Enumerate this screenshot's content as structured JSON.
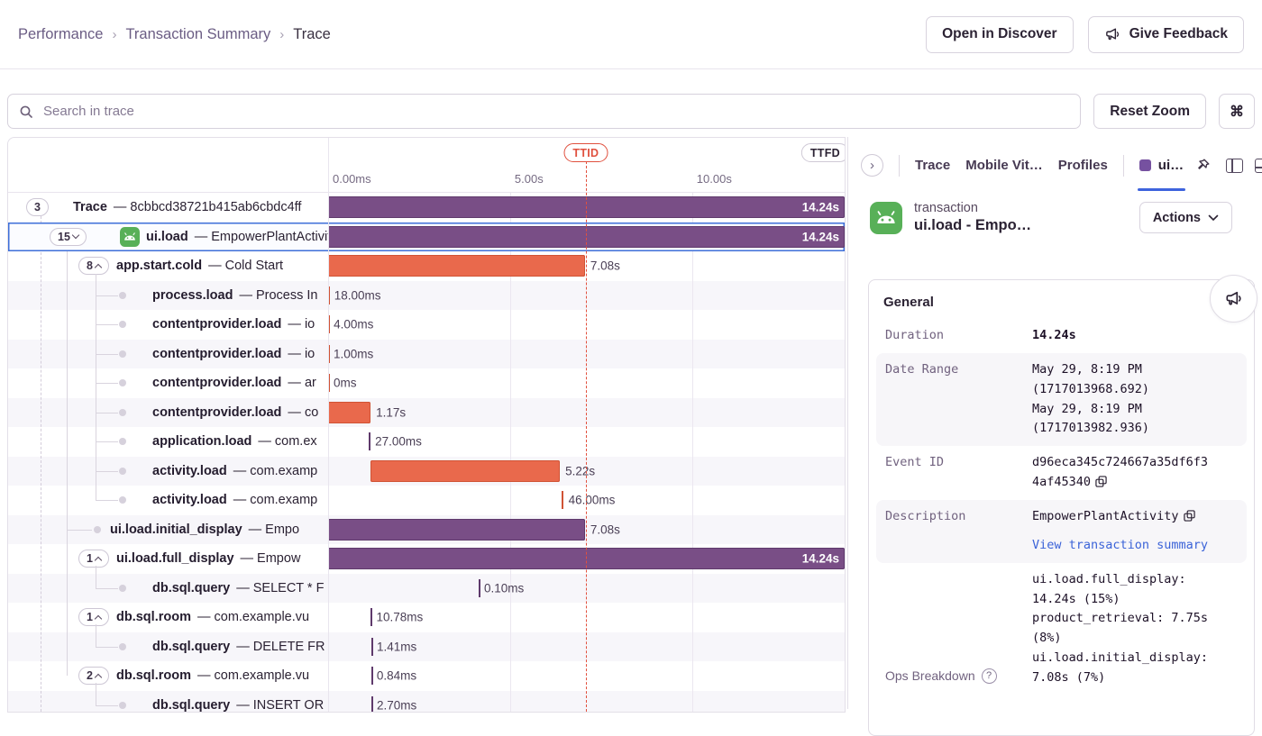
{
  "breadcrumb": {
    "items": [
      "Performance",
      "Transaction Summary",
      "Trace"
    ]
  },
  "header_buttons": {
    "open_in_discover": "Open in Discover",
    "give_feedback": "Give Feedback"
  },
  "toolbar": {
    "search_placeholder": "Search in trace",
    "reset_zoom_label": "Reset Zoom",
    "shortcut_key": "⌘"
  },
  "timeline": {
    "axis_ticks": [
      "0.00ms",
      "5.00s",
      "10.00s"
    ],
    "total_duration_s": 14.24,
    "markers": [
      {
        "label": "TTID",
        "time_s": 7.08,
        "style": "red"
      },
      {
        "label": "TTFD",
        "time_s": 14.24,
        "style": "gray"
      }
    ]
  },
  "trace_tree": {
    "rows": [
      {
        "op": "Trace",
        "desc": "8cbbcd38721b415ab6cbdc4ff",
        "kind": "pill",
        "pill": "3",
        "arrow": null,
        "level": 0,
        "bar": {
          "color": "purple",
          "start_s": 0,
          "dur_s": 14.24,
          "label": "14.24s",
          "inside": true
        }
      },
      {
        "op": "ui.load",
        "desc": "EmpowerPlantActivity",
        "kind": "pill",
        "pill": "15",
        "arrow": "down",
        "level": 1,
        "icon": "android",
        "selected": true,
        "bar": {
          "color": "purple",
          "start_s": 0,
          "dur_s": 14.24,
          "label": "14.24s",
          "inside": true
        }
      },
      {
        "op": "app.start.cold",
        "desc": "Cold Start",
        "kind": "pill",
        "pill": "8",
        "arrow": "up",
        "level": 2,
        "bar": {
          "color": "orange",
          "start_s": 0,
          "dur_s": 7.08,
          "label": "7.08s"
        }
      },
      {
        "op": "process.load",
        "desc": "Process In",
        "kind": "dot",
        "level": 3,
        "bar": {
          "color": "orange",
          "start_s": 0,
          "dur_s": 0.018,
          "label": "18.00ms"
        }
      },
      {
        "op": "contentprovider.load",
        "desc": "io",
        "kind": "dot",
        "level": 3,
        "bar": {
          "color": "orange",
          "start_s": 0,
          "dur_s": 0.004,
          "label": "4.00ms"
        }
      },
      {
        "op": "contentprovider.load",
        "desc": "io",
        "kind": "dot",
        "level": 3,
        "bar": {
          "color": "orange",
          "start_s": 0,
          "dur_s": 0.001,
          "label": "1.00ms"
        }
      },
      {
        "op": "contentprovider.load",
        "desc": "ar",
        "kind": "dot",
        "level": 3,
        "bar": {
          "color": "orange",
          "start_s": 0,
          "dur_s": 0,
          "label": "0ms"
        }
      },
      {
        "op": "contentprovider.load",
        "desc": "co",
        "kind": "dot",
        "level": 3,
        "bar": {
          "color": "orange",
          "start_s": 0,
          "dur_s": 1.17,
          "label": "1.17s"
        }
      },
      {
        "op": "application.load",
        "desc": "com.ex",
        "kind": "dot",
        "level": 3,
        "bar": {
          "color": "purple",
          "start_s": 1.12,
          "dur_s": 0.027,
          "label": "27.00ms"
        }
      },
      {
        "op": "activity.load",
        "desc": "com.examp",
        "kind": "dot",
        "level": 3,
        "bar": {
          "color": "orange",
          "start_s": 1.17,
          "dur_s": 5.22,
          "label": "5.22s"
        }
      },
      {
        "op": "activity.load",
        "desc": "com.examp",
        "kind": "dot",
        "level": 3,
        "bar": {
          "color": "orange",
          "start_s": 6.43,
          "dur_s": 0.046,
          "label": "46.00ms"
        }
      },
      {
        "op": "ui.load.initial_display",
        "desc": "Empo",
        "kind": "dot",
        "level": 2,
        "bar": {
          "color": "purple",
          "start_s": 0,
          "dur_s": 7.08,
          "label": "7.08s"
        }
      },
      {
        "op": "ui.load.full_display",
        "desc": "Empow",
        "kind": "pill",
        "pill": "1",
        "arrow": "up",
        "level": 2,
        "bar": {
          "color": "purple",
          "start_s": 0,
          "dur_s": 14.24,
          "label": "14.24s",
          "inside": true
        }
      },
      {
        "op": "db.sql.query",
        "desc": "SELECT * F",
        "kind": "dot",
        "level": 3,
        "bar": {
          "color": "purple",
          "start_s": 4.15,
          "dur_s": 0.0001,
          "label": "0.10ms"
        }
      },
      {
        "op": "db.sql.room",
        "desc": "com.example.vu",
        "kind": "pill",
        "pill": "1",
        "arrow": "up",
        "level": 2,
        "bar": {
          "color": "purple",
          "start_s": 1.17,
          "dur_s": 0.0108,
          "label": "10.78ms"
        }
      },
      {
        "op": "db.sql.query",
        "desc": "DELETE FR",
        "kind": "dot",
        "level": 3,
        "bar": {
          "color": "purple",
          "start_s": 1.19,
          "dur_s": 0.0014,
          "label": "1.41ms"
        }
      },
      {
        "op": "db.sql.room",
        "desc": "com.example.vu",
        "kind": "pill",
        "pill": "2",
        "arrow": "up",
        "level": 2,
        "bar": {
          "color": "purple",
          "start_s": 1.19,
          "dur_s": 0.0008,
          "label": "0.84ms"
        }
      },
      {
        "op": "db.sql.query",
        "desc": "INSERT OR",
        "kind": "dot",
        "level": 3,
        "bar": {
          "color": "purple",
          "start_s": 1.19,
          "dur_s": 0.0027,
          "label": "2.70ms"
        }
      }
    ]
  },
  "details_panel": {
    "tabs": [
      "Trace",
      "Mobile Vit…",
      "Profiles"
    ],
    "active_tab_label": "ui…",
    "transaction": {
      "kind": "transaction",
      "title": "ui.load - Empo…",
      "actions_label": "Actions"
    },
    "general": {
      "title": "General",
      "duration": {
        "key": "Duration",
        "value": "14.24s"
      },
      "date_range": {
        "key": "Date Range",
        "lines": [
          "May 29, 8:19 PM",
          "(1717013968.692)",
          "May 29, 8:19 PM",
          "(1717013982.936)"
        ]
      },
      "event_id": {
        "key": "Event ID",
        "value": "d96eca345c724667a35df6f34af45340"
      },
      "description": {
        "key": "Description",
        "value": "EmpowerPlantActivity",
        "link": "View transaction summary"
      },
      "ops_breakdown": {
        "key": "Ops Breakdown",
        "entries": [
          "ui.load.full_display: 14.24s (15%)",
          "product_retrieval: 7.75s (8%)",
          "ui.load.initial_display: 7.08s (7%)"
        ]
      }
    }
  },
  "colors": {
    "span_purple": "#794e86",
    "span_orange": "#e9694c",
    "ttid_red": "#e0503e",
    "selected_blue": "#3e6fd9",
    "link_blue": "#3b63d8",
    "active_tab_underline": "#3e63dd",
    "android_green": "#58b058",
    "tab_square_purple": "#7651a0"
  }
}
